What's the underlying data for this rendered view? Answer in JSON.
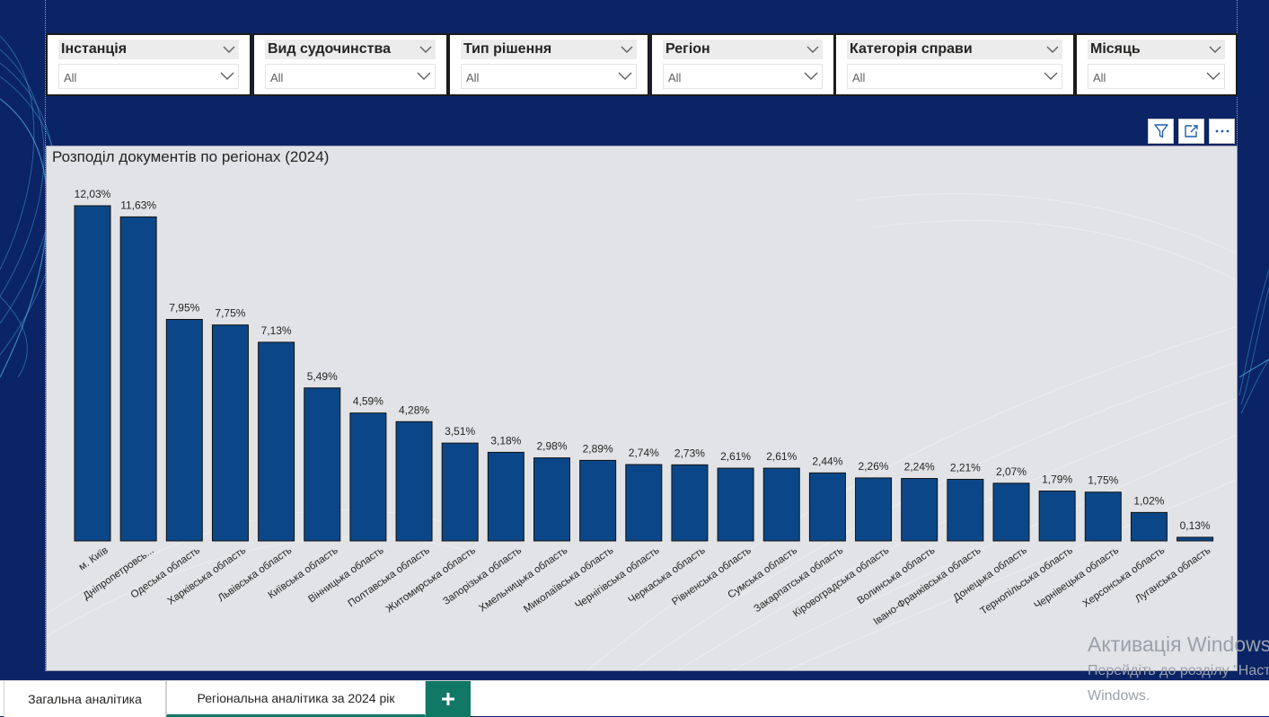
{
  "filters": [
    {
      "id": "instance",
      "label": "Інстанція",
      "value": "All"
    },
    {
      "id": "proceeding",
      "label": "Вид судочинства",
      "value": "All"
    },
    {
      "id": "decision",
      "label": "Тип рішення",
      "value": "All"
    },
    {
      "id": "region",
      "label": "Регіон",
      "value": "All"
    },
    {
      "id": "category",
      "label": "Категорія справи",
      "value": "All"
    },
    {
      "id": "month",
      "label": "Місяць",
      "value": "All"
    }
  ],
  "visual_header": {
    "icons": [
      "filter-icon",
      "focus-mode-icon",
      "more-options-icon"
    ]
  },
  "tabs": [
    {
      "label": "Загальна аналітика",
      "active": false
    },
    {
      "label": "Регіональна аналітика за 2024 рік",
      "active": true
    }
  ],
  "add_tab_icon": "plus-icon",
  "watermark": {
    "title": "Активація Windows",
    "line1": "Перейдіть до розділу \"Настройки\"",
    "line2": "Windows."
  },
  "colors": {
    "bar": "#0b4788",
    "tab_accent": "#117865",
    "background": "#0a2466"
  },
  "chart_data": {
    "type": "bar",
    "title": "Розподіл документів по регіонах (2024)",
    "categories": [
      "м. Київ",
      "Дніпропетровсь...",
      "Одеська область",
      "Харківська область",
      "Львівська область",
      "Київська область",
      "Вінницька область",
      "Полтавська область",
      "Житомирська область",
      "Запорізька область",
      "Хмельницька область",
      "Миколаївська область",
      "Чернігівська область",
      "Черкаська область",
      "Рівненська область",
      "Сумська область",
      "Закарпатська область",
      "Кіровоградська область",
      "Волинська область",
      "Івано-Франківська область",
      "Донецька область",
      "Тернопільська область",
      "Чернівецька область",
      "Херсонська область",
      "Луганська область"
    ],
    "values": [
      12.03,
      11.63,
      7.95,
      7.75,
      7.13,
      5.49,
      4.59,
      4.28,
      3.51,
      3.18,
      2.98,
      2.89,
      2.74,
      2.73,
      2.61,
      2.61,
      2.44,
      2.26,
      2.24,
      2.21,
      2.07,
      1.79,
      1.75,
      1.02,
      0.13
    ],
    "data_labels": [
      "12,03%",
      "11,63%",
      "7,95%",
      "7,75%",
      "7,13%",
      "5,49%",
      "4,59%",
      "4,28%",
      "3,51%",
      "3,18%",
      "2,98%",
      "2,89%",
      "2,74%",
      "2,73%",
      "2,61%",
      "2,61%",
      "2,44%",
      "2,26%",
      "2,24%",
      "2,21%",
      "2,07%",
      "1,79%",
      "1,75%",
      "1,02%",
      "0,13%"
    ],
    "unit": "%",
    "ylim": [
      0,
      12.03
    ],
    "grid": false,
    "legend": "none",
    "xlabel": "",
    "ylabel": ""
  }
}
